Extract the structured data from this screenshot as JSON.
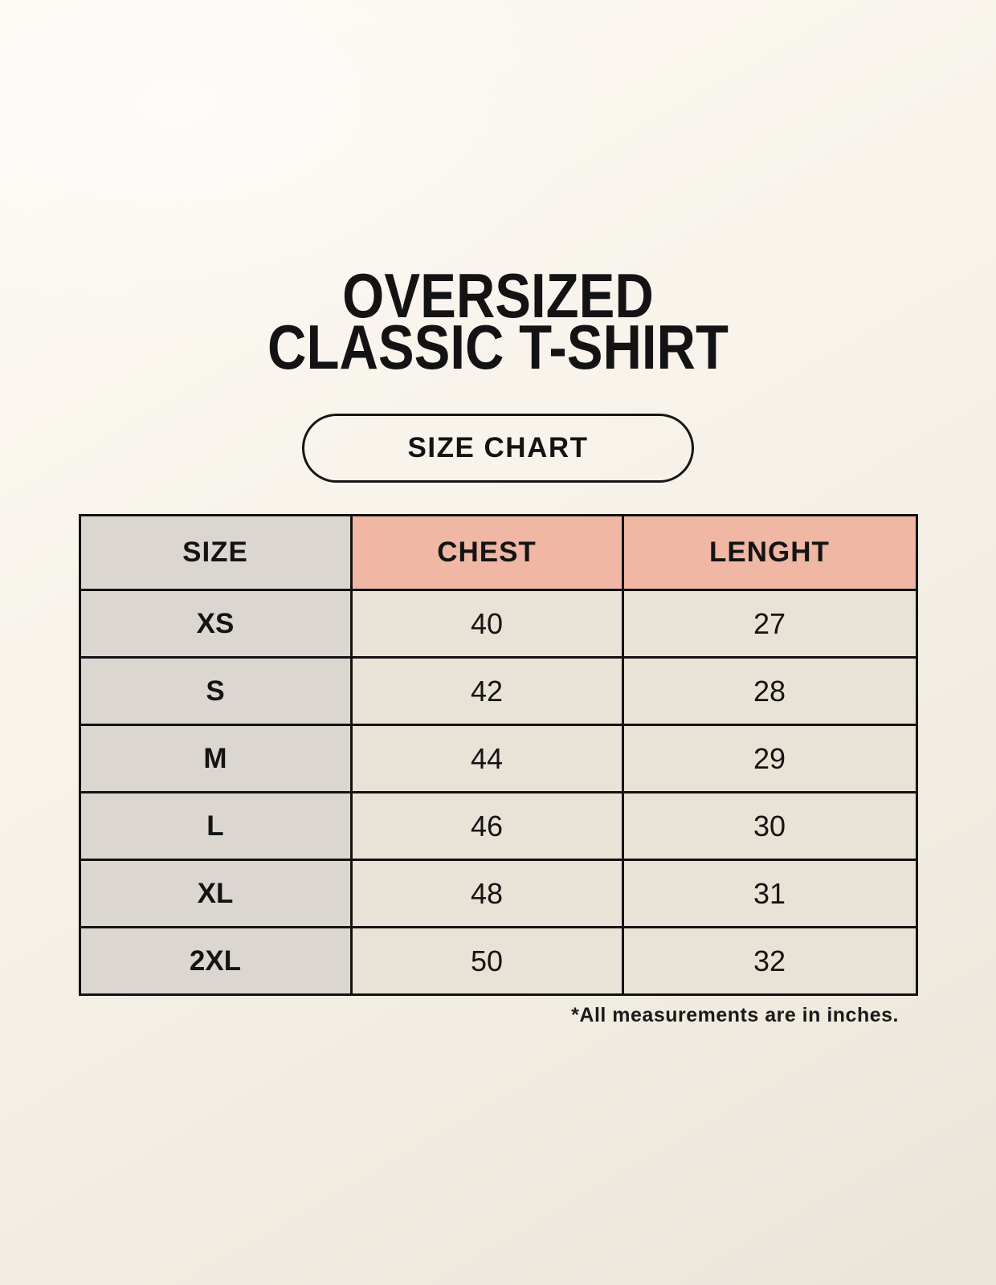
{
  "title": {
    "line1": "OVERSIZED",
    "line2": "CLASSIC T-SHIRT"
  },
  "size_chart_button": {
    "label": "SIZE CHART"
  },
  "table": {
    "headers": [
      "SIZE",
      "CHEST",
      "LENGHT"
    ],
    "rows": [
      {
        "size": "XS",
        "chest": "40",
        "length": "27"
      },
      {
        "size": "S",
        "chest": "42",
        "length": "28"
      },
      {
        "size": "M",
        "chest": "44",
        "length": "29"
      },
      {
        "size": "L",
        "chest": "46",
        "length": "30"
      },
      {
        "size": "XL",
        "chest": "48",
        "length": "31"
      },
      {
        "size": "2XL",
        "chest": "50",
        "length": "32"
      }
    ]
  },
  "footnote": "*All measurements are in inches.",
  "colors": {
    "background": "#f8f4ec",
    "header_accent": "#f0b7a4",
    "size_column": "#dcd6d0",
    "data_cell": "#e9e2d6",
    "border": "#121212",
    "ink": "#141414"
  }
}
